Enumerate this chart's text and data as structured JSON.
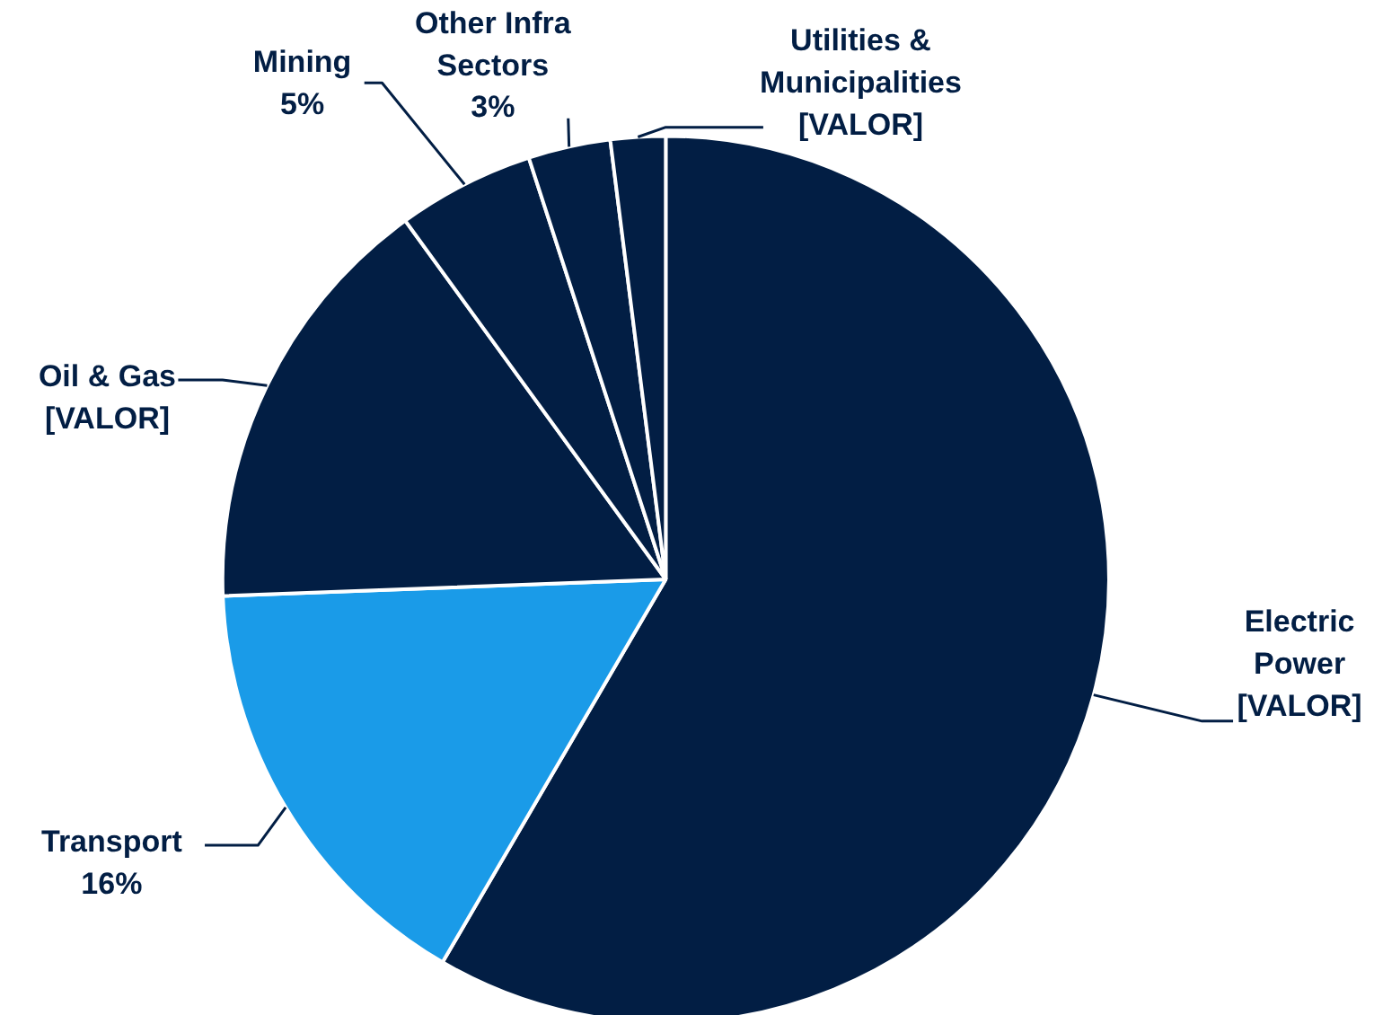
{
  "chart_data": {
    "type": "pie",
    "categories": [
      "Electric Power",
      "Transport",
      "Oil & Gas",
      "Mining",
      "Other Infra Sectors",
      "Utilities & Municipalities"
    ],
    "values": [
      58.4,
      16,
      15.6,
      5,
      3,
      2
    ],
    "colors": [
      "#021e44",
      "#1a9be8",
      "#021e44",
      "#021e44",
      "#021e44",
      "#021e44"
    ],
    "value_labels": [
      "[VALOR]",
      "16%",
      "[VALOR]",
      "5%",
      "3%",
      "[VALOR]"
    ]
  }
}
